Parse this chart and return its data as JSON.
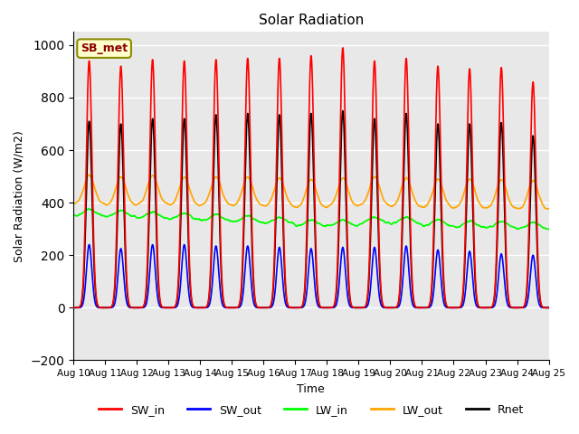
{
  "title": "Solar Radiation",
  "ylabel": "Solar Radiation (W/m2)",
  "xlabel": "Time",
  "ylim": [
    -200,
    1050
  ],
  "yticks": [
    -200,
    0,
    200,
    400,
    600,
    800,
    1000
  ],
  "xtick_labels": [
    "Aug 10",
    "Aug 11",
    "Aug 12",
    "Aug 13",
    "Aug 14",
    "Aug 15",
    "Aug 16",
    "Aug 17",
    "Aug 18",
    "Aug 19",
    "Aug 20",
    "Aug 21",
    "Aug 22",
    "Aug 23",
    "Aug 24",
    "Aug 25"
  ],
  "bg_color": "#e8e8e8",
  "grid_color": "white",
  "legend_label": "SB_met",
  "legend_box_color": "#ffffcc",
  "legend_border_color": "#8b8b00",
  "sw_peaks": [
    940,
    920,
    945,
    940,
    945,
    950,
    950,
    960,
    990,
    940,
    950,
    920,
    910,
    915,
    860
  ],
  "sw_out_peaks": [
    240,
    225,
    240,
    240,
    235,
    235,
    230,
    225,
    230,
    230,
    235,
    220,
    215,
    205,
    200
  ],
  "rnet_peaks": [
    710,
    700,
    720,
    720,
    735,
    740,
    735,
    740,
    750,
    720,
    740,
    700,
    700,
    705,
    655
  ],
  "lw_in_base": [
    350,
    345,
    340,
    335,
    330,
    325,
    320,
    310,
    310,
    320,
    320,
    310,
    305,
    305,
    300
  ],
  "lw_out_base": [
    395,
    390,
    395,
    388,
    390,
    388,
    385,
    380,
    385,
    390,
    385,
    380,
    380,
    378,
    375
  ],
  "lw_out_day_bump": 110,
  "series": {
    "SW_in": {
      "color": "red",
      "lw": 1.2
    },
    "SW_out": {
      "color": "blue",
      "lw": 1.2
    },
    "LW_in": {
      "color": "#00ff00",
      "lw": 1.2
    },
    "LW_out": {
      "color": "orange",
      "lw": 1.2
    },
    "Rnet": {
      "color": "black",
      "lw": 1.2
    }
  }
}
